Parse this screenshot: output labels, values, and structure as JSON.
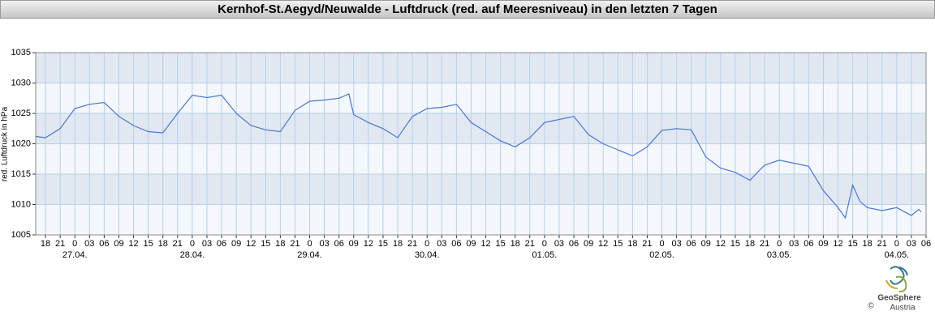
{
  "chart_data": {
    "type": "line",
    "title": "Kernhof-St.Aegyd/Neuwalde - Luftdruck (red. auf Meeresniveau) in den letzten 7 Tagen",
    "y_label": "red. Luftdruck in hPa",
    "color": "#4a78d0",
    "band_colors": [
      "#f4f7fb",
      "#e1e8f1"
    ],
    "grid_color": "#b9cfe8",
    "grid": true,
    "x": [
      -8,
      -6,
      -3,
      0,
      3,
      6,
      9,
      12,
      15,
      18,
      21,
      24,
      27,
      30,
      33,
      36,
      39,
      42,
      45,
      48,
      51,
      54,
      56,
      57,
      60,
      63,
      66,
      69,
      72,
      75,
      78,
      81,
      84,
      87,
      90,
      93,
      96,
      99,
      102,
      105,
      108,
      111,
      114,
      117,
      120,
      123,
      126,
      129,
      132,
      135,
      138,
      141,
      144,
      147,
      150,
      153,
      156,
      157.5,
      159,
      160.5,
      162,
      165,
      168,
      171,
      172.5,
      173
    ],
    "values": [
      1021.2,
      1021.0,
      1022.5,
      1025.8,
      1026.5,
      1026.8,
      1024.5,
      1023,
      1022,
      1021.8,
      1025,
      1028,
      1027.6,
      1028,
      1025,
      1023,
      1022.3,
      1022,
      1025.5,
      1027,
      1027.2,
      1027.5,
      1028.2,
      1024.8,
      1023.5,
      1022.5,
      1021,
      1024.5,
      1025.8,
      1026,
      1026.5,
      1023.5,
      1022,
      1020.5,
      1019.5,
      1021,
      1023.5,
      1024,
      1024.5,
      1021.5,
      1020,
      1019,
      1018,
      1019.5,
      1022.2,
      1022.5,
      1022.3,
      1017.8,
      1016,
      1015.3,
      1014,
      1016.5,
      1017.3,
      1016.8,
      1016.3,
      1012.3,
      1009.5,
      1007.8,
      1013.2,
      1010.5,
      1009.5,
      1009,
      1009.5,
      1008.2,
      1009.2,
      1008.8
    ],
    "xlim": [
      -8,
      174
    ],
    "ylim": [
      1005,
      1035
    ],
    "yticks": [
      1005,
      1010,
      1015,
      1020,
      1025,
      1030,
      1035
    ],
    "xticks": [
      {
        "value": -6,
        "label": "18"
      },
      {
        "value": -3,
        "label": "21"
      },
      0,
      {
        "value": 3,
        "label": "03"
      },
      {
        "value": 6,
        "label": "06"
      },
      {
        "value": 9,
        "label": "09"
      },
      12,
      15,
      18,
      21,
      {
        "value": 24,
        "label": "0"
      },
      {
        "value": 27,
        "label": "03"
      },
      {
        "value": 30,
        "label": "06"
      },
      {
        "value": 33,
        "label": "09"
      },
      {
        "value": 36,
        "label": "12"
      },
      {
        "value": 39,
        "label": "15"
      },
      {
        "value": 42,
        "label": "18"
      },
      {
        "value": 45,
        "label": "21"
      },
      {
        "value": 48,
        "label": "0"
      },
      {
        "value": 51,
        "label": "03"
      },
      {
        "value": 54,
        "label": "06"
      },
      {
        "value": 57,
        "label": "09"
      },
      {
        "value": 60,
        "label": "12"
      },
      {
        "value": 63,
        "label": "15"
      },
      {
        "value": 66,
        "label": "18"
      },
      {
        "value": 69,
        "label": "21"
      },
      {
        "value": 72,
        "label": "0"
      },
      {
        "value": 75,
        "label": "03"
      },
      {
        "value": 78,
        "label": "06"
      },
      {
        "value": 81,
        "label": "09"
      },
      {
        "value": 84,
        "label": "12"
      },
      {
        "value": 87,
        "label": "15"
      },
      {
        "value": 90,
        "label": "18"
      },
      {
        "value": 93,
        "label": "21"
      },
      {
        "value": 96,
        "label": "0"
      },
      {
        "value": 99,
        "label": "03"
      },
      {
        "value": 102,
        "label": "06"
      },
      {
        "value": 105,
        "label": "09"
      },
      {
        "value": 108,
        "label": "12"
      },
      {
        "value": 111,
        "label": "15"
      },
      {
        "value": 114,
        "label": "18"
      },
      {
        "value": 117,
        "label": "21"
      },
      {
        "value": 120,
        "label": "0"
      },
      {
        "value": 123,
        "label": "03"
      },
      {
        "value": 126,
        "label": "06"
      },
      {
        "value": 129,
        "label": "09"
      },
      {
        "value": 132,
        "label": "12"
      },
      {
        "value": 135,
        "label": "15"
      },
      {
        "value": 138,
        "label": "18"
      },
      {
        "value": 141,
        "label": "21"
      },
      {
        "value": 144,
        "label": "0"
      },
      {
        "value": 147,
        "label": "03"
      },
      {
        "value": 150,
        "label": "06"
      },
      {
        "value": 153,
        "label": "09"
      },
      {
        "value": 156,
        "label": "12"
      },
      {
        "value": 159,
        "label": "15"
      },
      {
        "value": 162,
        "label": "18"
      },
      {
        "value": 165,
        "label": "21"
      },
      {
        "value": 168,
        "label": "0"
      },
      {
        "value": 171,
        "label": "03"
      },
      {
        "value": 174,
        "label": "06"
      }
    ],
    "date_labels": [
      {
        "value": 0,
        "label": "27.04."
      },
      {
        "value": 24,
        "label": "28.04."
      },
      {
        "value": 48,
        "label": "29.04."
      },
      {
        "value": 72,
        "label": "30.04."
      },
      {
        "value": 96,
        "label": "01.05."
      },
      {
        "value": 120,
        "label": "02.05."
      },
      {
        "value": 144,
        "label": "03.05."
      },
      {
        "value": 168,
        "label": "04.05."
      }
    ]
  },
  "logo": {
    "name": "GeoSphere",
    "subtitle": "Austria",
    "copyright": "©"
  }
}
